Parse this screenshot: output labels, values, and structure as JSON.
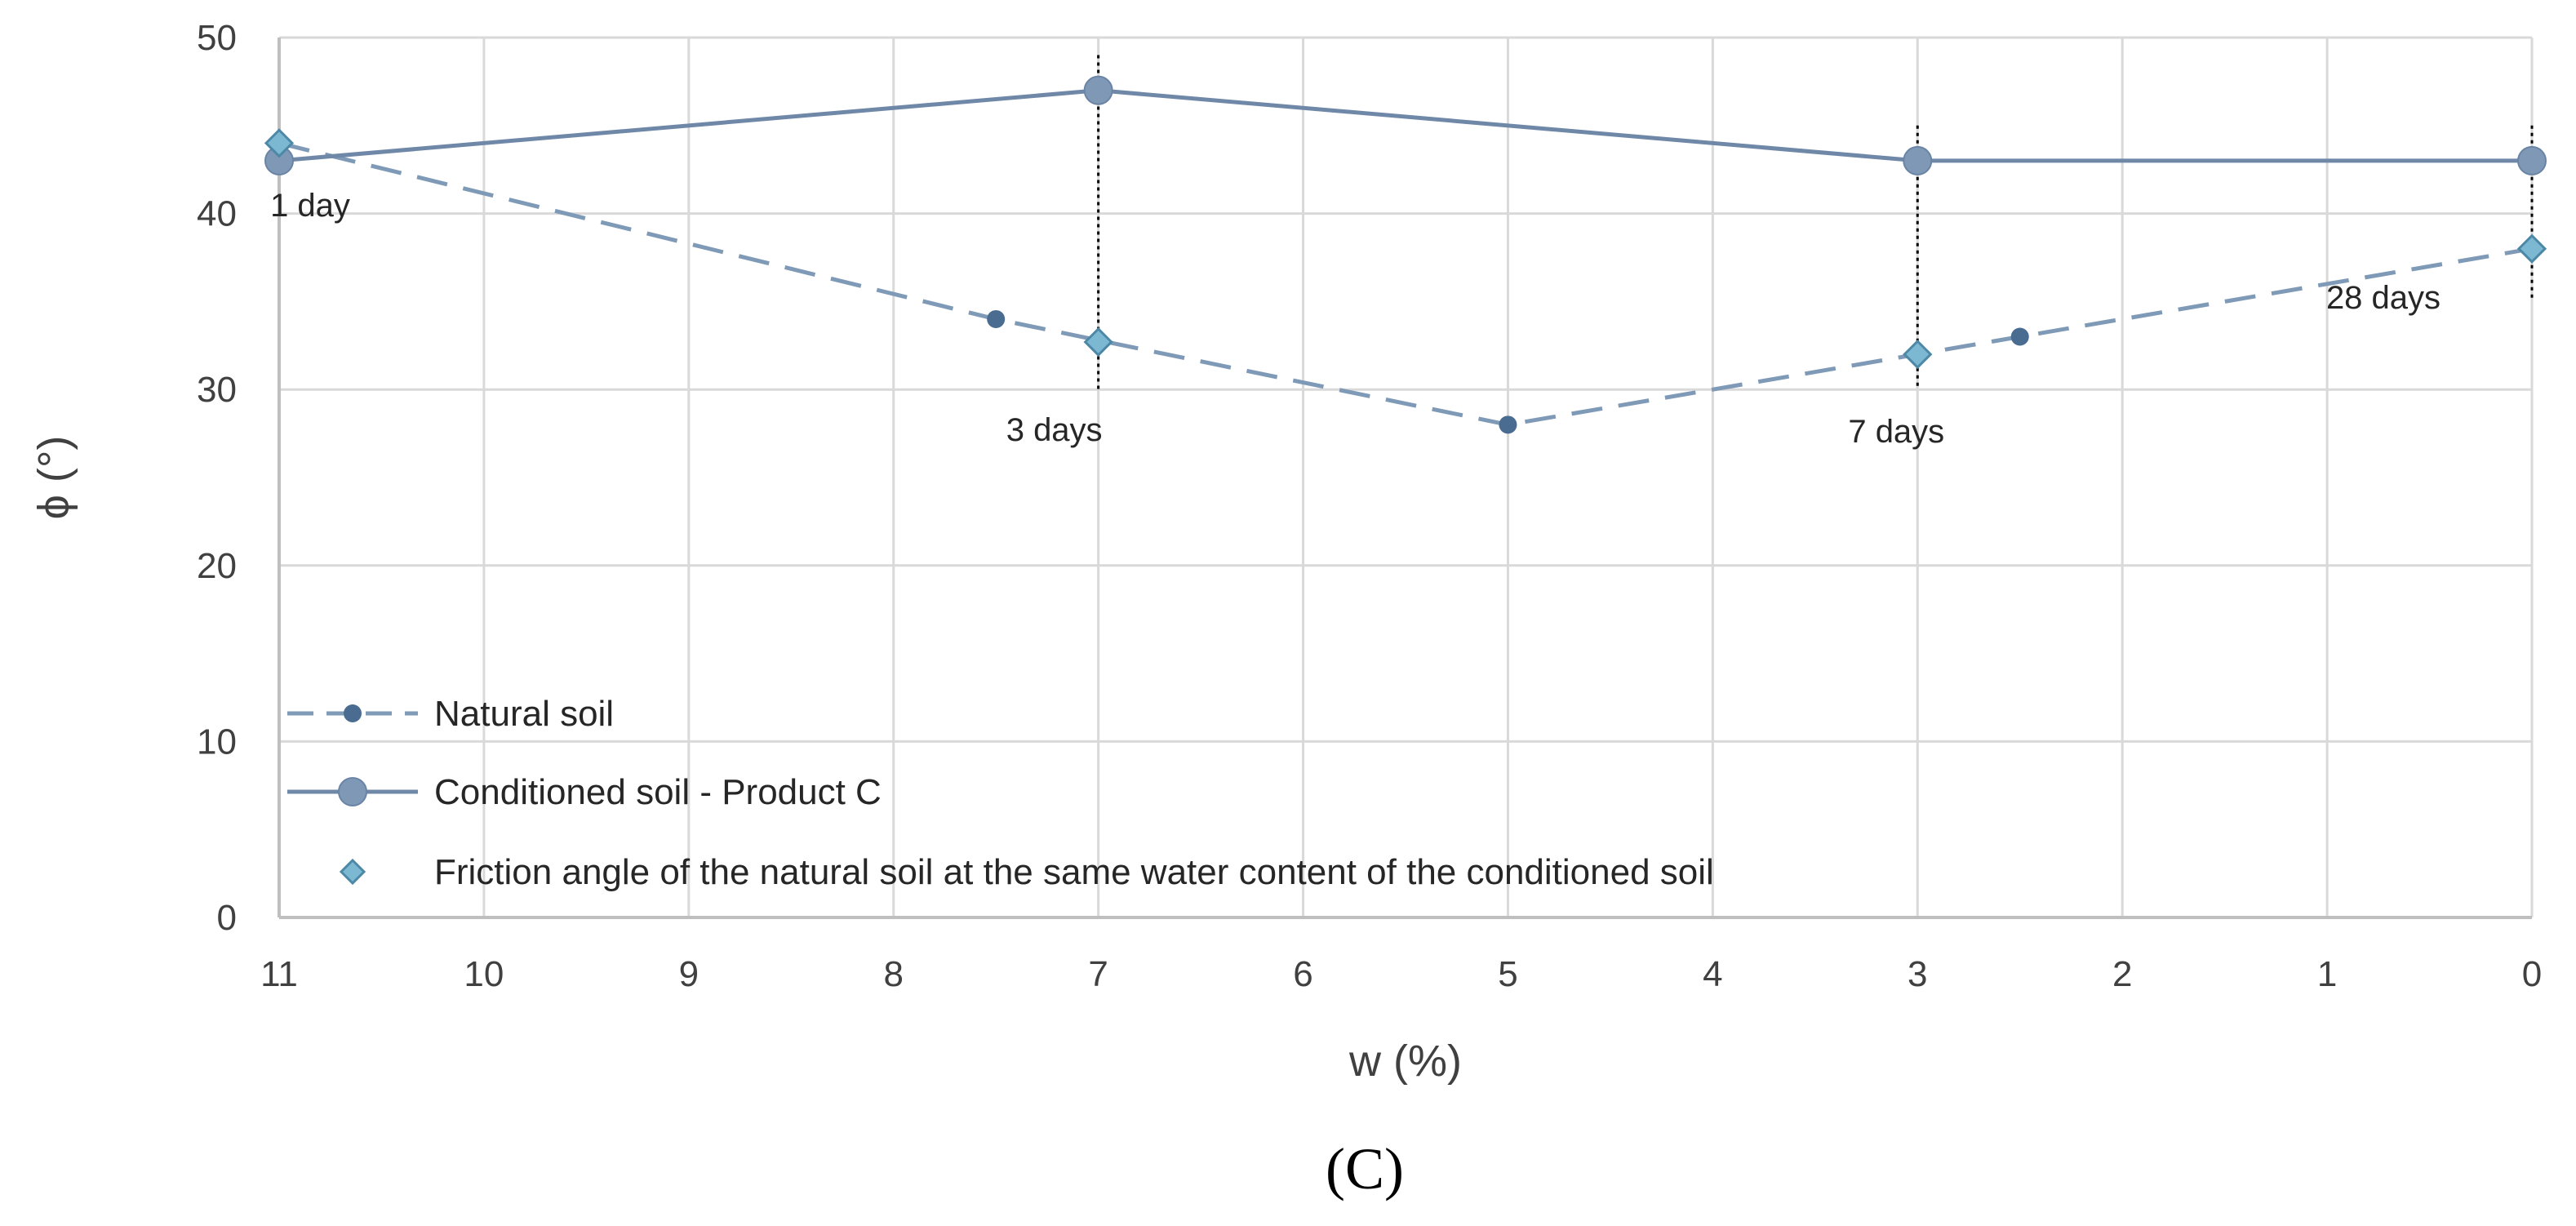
{
  "colors": {
    "natural": "#4a6c91",
    "natural_line": "#7f9ab7",
    "conditioned": "#7f98b5",
    "conditioned_line": "#6f88a8",
    "friction": "#7db8d2",
    "friction_edge": "#4d88a6",
    "grid": "#d9d9d9",
    "axis": "#bfbfbf"
  },
  "chart_data": {
    "type": "line",
    "panel_label": "(C)",
    "title": "",
    "xlabel": "w (%)",
    "ylabel": "ϕ (°)",
    "xlim": [
      11,
      0
    ],
    "ylim": [
      0,
      50
    ],
    "x_ticks": [
      11,
      10,
      9,
      8,
      7,
      6,
      5,
      4,
      3,
      2,
      1,
      0
    ],
    "y_ticks": [
      0,
      10,
      20,
      30,
      40,
      50
    ],
    "grid": true,
    "legend_position": "bottom-left",
    "series": [
      {
        "name": "Natural soil",
        "style": "dashed-line-small-dot",
        "x": [
          11,
          7.5,
          5,
          2.5,
          0
        ],
        "y": [
          44,
          34,
          28,
          33,
          38
        ]
      },
      {
        "name": "Conditioned soil - Product C",
        "style": "solid-line-large-circle",
        "x": [
          11,
          7,
          3,
          0
        ],
        "y": [
          43,
          47,
          43,
          43
        ]
      },
      {
        "name": "Friction angle of the natural soil at the same water content of the conditioned soil",
        "style": "diamond-markers",
        "x": [
          11,
          7,
          3,
          0
        ],
        "y": [
          44,
          32.7,
          32,
          38
        ]
      }
    ],
    "annotations": [
      {
        "text": "1 day",
        "x": 11
      },
      {
        "text": "3 days",
        "x": 7
      },
      {
        "text": "7 days",
        "x": 3
      },
      {
        "text": "28 days",
        "x": 0
      }
    ],
    "vertical_markers": [
      {
        "x": 7,
        "y_from": 30,
        "y_to": 49
      },
      {
        "x": 3,
        "y_from": 30,
        "y_to": 45
      },
      {
        "x": 0,
        "y_from": 35,
        "y_to": 45
      }
    ]
  }
}
